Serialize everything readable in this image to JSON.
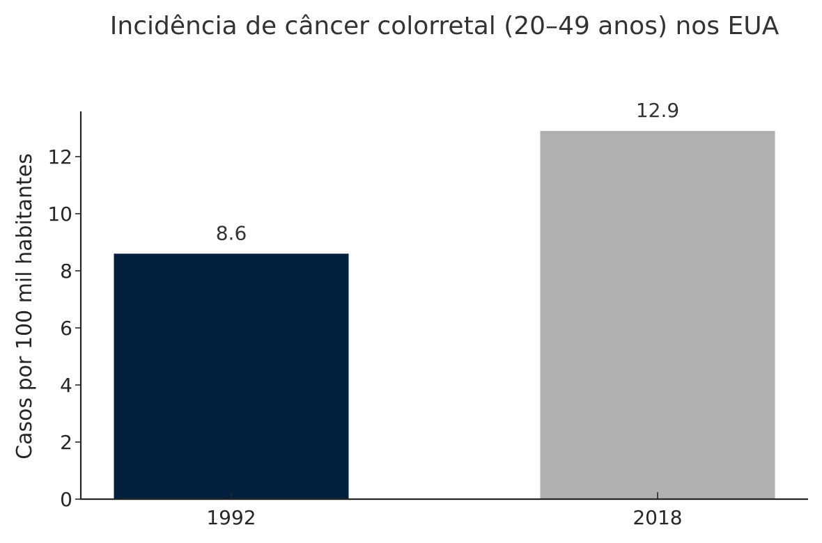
{
  "chart_data": {
    "type": "bar",
    "title": "Incidência de câncer colorretal (20–49 anos) nos EUA",
    "xlabel": "",
    "ylabel": "Casos por 100 mil habitantes",
    "categories": [
      "1992",
      "2018"
    ],
    "values": [
      8.6,
      12.9
    ],
    "value_labels": [
      "8.6",
      "12.9"
    ],
    "bar_colors": [
      "#021f3d",
      "#b0b0b0"
    ],
    "ylim": [
      0,
      13.5
    ],
    "yticks": [
      0,
      2,
      4,
      6,
      8,
      10,
      12
    ],
    "grid": false,
    "legend": "none"
  }
}
